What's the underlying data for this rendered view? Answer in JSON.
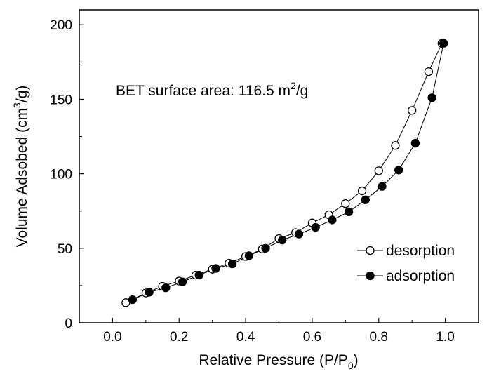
{
  "chart_data": {
    "type": "line",
    "xlabel_main": "Relative Pressure (P/P",
    "xlabel_sub": "0",
    "xlabel_end": ")",
    "ylabel_main": "Volume Adsobed (cm",
    "ylabel_sup": "3",
    "ylabel_end": "/g)",
    "annotation_main": "BET surface area: 116.5 m",
    "annotation_sup": "2",
    "annotation_end": "/g",
    "xlim": [
      -0.1,
      1.1
    ],
    "ylim": [
      0,
      210
    ],
    "xticks": [
      0.0,
      0.2,
      0.4,
      0.6,
      0.8,
      1.0
    ],
    "xtick_labels": [
      "0.0",
      "0.2",
      "0.4",
      "0.6",
      "0.8",
      "1.0"
    ],
    "yticks": [
      0,
      50,
      100,
      150,
      200
    ],
    "ytick_labels": [
      "0",
      "50",
      "100",
      "150",
      "200"
    ],
    "legend_position": "center-right",
    "series": [
      {
        "name": "desorption",
        "marker": "open-circle",
        "x": [
          0.04,
          0.1,
          0.15,
          0.2,
          0.25,
          0.3,
          0.35,
          0.4,
          0.45,
          0.5,
          0.55,
          0.6,
          0.65,
          0.7,
          0.75,
          0.8,
          0.85,
          0.9,
          0.95,
          0.99
        ],
        "y": [
          13.5,
          20,
          24.5,
          28,
          32,
          36,
          40,
          44.5,
          49.5,
          56.5,
          60.5,
          67,
          72.5,
          80,
          88.5,
          102,
          119,
          142.5,
          168.5,
          187.5
        ]
      },
      {
        "name": "adsorption",
        "marker": "filled-circle",
        "x": [
          0.06,
          0.11,
          0.16,
          0.21,
          0.26,
          0.31,
          0.36,
          0.41,
          0.46,
          0.51,
          0.56,
          0.61,
          0.66,
          0.71,
          0.76,
          0.81,
          0.86,
          0.91,
          0.96,
          0.995
        ],
        "y": [
          15.5,
          20.5,
          23.5,
          27.5,
          32,
          36.5,
          39.5,
          45,
          50,
          55.5,
          59.5,
          64,
          69,
          74.5,
          82.5,
          91.5,
          102.5,
          120.5,
          151,
          187.5
        ]
      }
    ]
  }
}
